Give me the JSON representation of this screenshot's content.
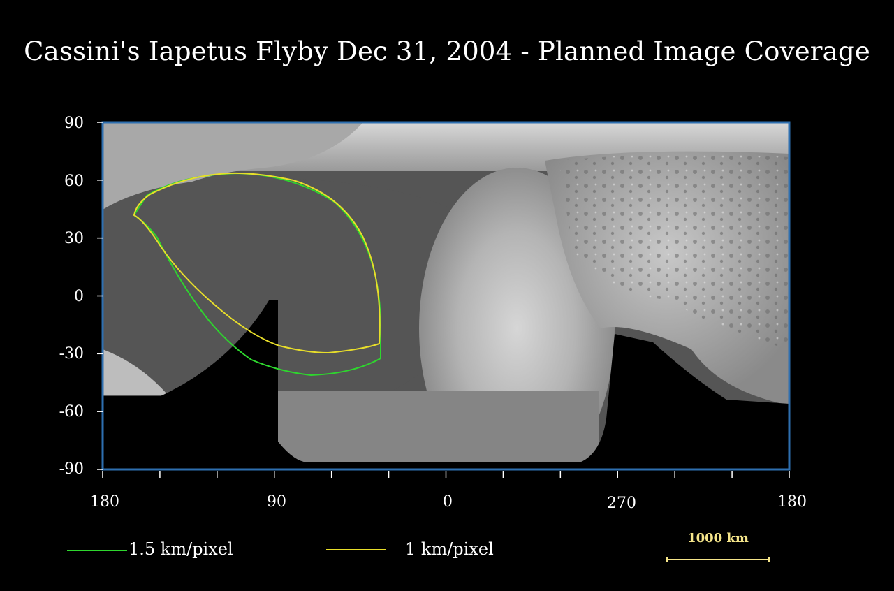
{
  "title": "Cassini's Iapetus Flyby Dec 31, 2004 - Planned Image Coverage",
  "map": {
    "y_ticks": [
      "90",
      "60",
      "30",
      "0",
      "-30",
      "-60",
      "-90"
    ],
    "x_tick_labels": [
      "180",
      "90",
      "0",
      "270",
      "180"
    ],
    "frame_color": "#2e6fb0",
    "coverage": [
      {
        "label": "1.5 km/pixel",
        "color": "#2ed62e"
      },
      {
        "label": "1 km/pixel",
        "color": "#e8de2a"
      }
    ]
  },
  "scale_bar": {
    "label": "1000 km",
    "color": "#f5e58a"
  }
}
